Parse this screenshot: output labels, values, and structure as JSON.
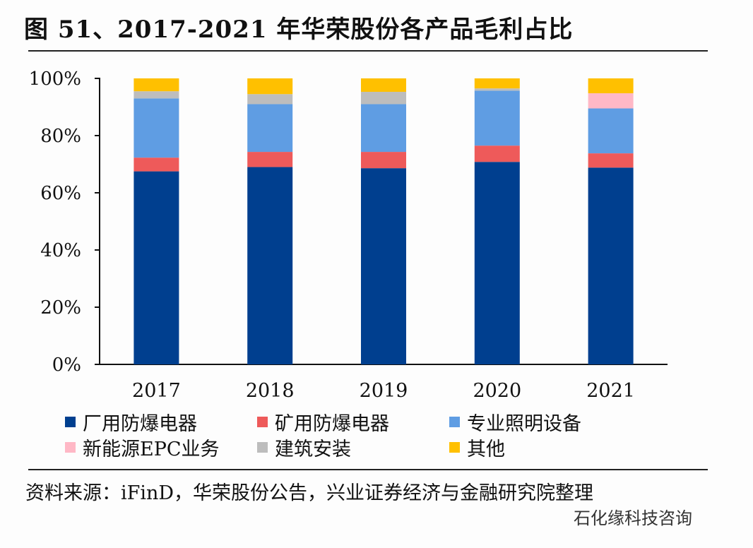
{
  "title": "图 51、2017-2021 年华荣股份各产品毛利占比",
  "source": "资料来源：iFinD，华荣股份公告，兴业证券经济与金融研究院整理",
  "watermark": "石化缘科技咨询",
  "chart_data": {
    "type": "bar",
    "stacked": true,
    "title": "图 51、2017-2021 年华荣股份各产品毛利占比",
    "categories": [
      "2017",
      "2018",
      "2019",
      "2020",
      "2021"
    ],
    "ylim": [
      0,
      100
    ],
    "yticks": [
      "0%",
      "20%",
      "40%",
      "60%",
      "80%",
      "100%"
    ],
    "grid": false,
    "legend_position": "bottom",
    "series": [
      {
        "name": "厂用防爆电器",
        "color": "#003f8f",
        "values": [
          67.5,
          69.0,
          68.6,
          70.8,
          68.8
        ]
      },
      {
        "name": "矿用防爆电器",
        "color": "#ee5a5a",
        "values": [
          4.8,
          5.3,
          5.7,
          5.7,
          5.0
        ]
      },
      {
        "name": "专业照明设备",
        "color": "#5f9de3",
        "values": [
          20.7,
          16.7,
          16.7,
          19.2,
          15.7
        ]
      },
      {
        "name": "新能源EPC业务",
        "color": "#ffb8c6",
        "values": [
          0,
          0,
          0,
          0,
          5.3
        ]
      },
      {
        "name": "建筑安装",
        "color": "#bdbdbd",
        "values": [
          2.5,
          3.5,
          4.3,
          0.8,
          0
        ]
      },
      {
        "name": "其他",
        "color": "#ffc000",
        "values": [
          4.5,
          5.5,
          4.7,
          3.5,
          5.2
        ]
      }
    ]
  }
}
